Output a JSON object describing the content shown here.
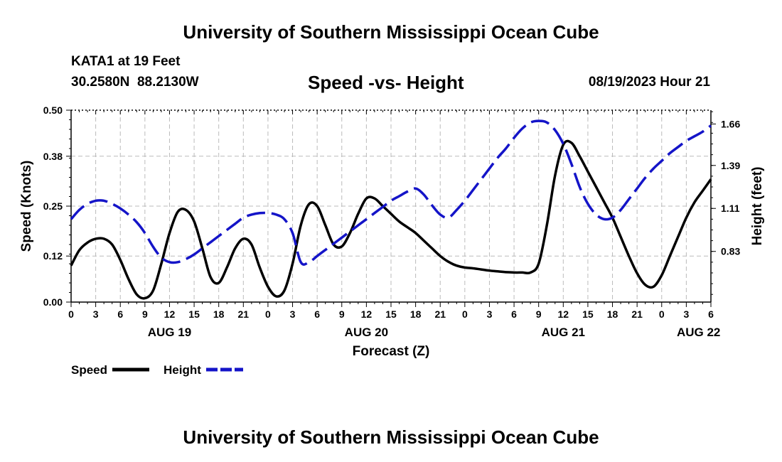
{
  "header": {
    "title": "University of Southern Mississippi Ocean Cube",
    "station": "KATA1 at 19 Feet",
    "coords": "30.2580N  88.2130W",
    "subtitle": "Speed -vs- Height",
    "timestamp": "08/19/2023 Hour 21"
  },
  "footer": {
    "title": "University of Southern Mississippi Ocean Cube"
  },
  "colors": {
    "speed": "#000000",
    "height": "#1414c8",
    "grid": "#bbbbbb"
  },
  "chart_data": {
    "type": "line",
    "title": "Speed -vs- Height",
    "xlabel": "Forecast (Z)",
    "ylabel": "Speed (Knots)",
    "y2label": "Height (feet)",
    "x_range_hours": [
      0,
      78
    ],
    "ylim": [
      0,
      0.5
    ],
    "y_ticks": [
      "0.00",
      "0.12",
      "0.25",
      "0.38",
      "0.50"
    ],
    "y2lim": [
      0.5,
      1.75
    ],
    "y2_ticks": [
      "0.83",
      "1.11",
      "1.39",
      "1.66"
    ],
    "x_tick_labels": [
      "0",
      "3",
      "6",
      "9",
      "12",
      "15",
      "18",
      "21",
      "0",
      "3",
      "6",
      "9",
      "12",
      "15",
      "18",
      "21",
      "0",
      "3",
      "6",
      "9",
      "12",
      "15",
      "18",
      "21",
      "0",
      "3",
      "6"
    ],
    "date_labels": [
      {
        "label": "AUG 19",
        "hour": 12
      },
      {
        "label": "AUG 20",
        "hour": 36
      },
      {
        "label": "AUG 21",
        "hour": 60
      },
      {
        "label": "AUG 22",
        "hour": 76.5
      }
    ],
    "grid": true,
    "legend": [
      {
        "name": "Speed",
        "style": "solid"
      },
      {
        "name": "Height",
        "style": "dashed"
      }
    ],
    "series": [
      {
        "name": "Speed",
        "axis": "left",
        "style": "solid",
        "x": [
          0,
          1,
          2,
          3,
          4,
          5,
          6,
          7,
          8,
          9,
          10,
          11,
          12,
          13,
          14,
          15,
          16,
          17,
          18,
          19,
          20,
          21,
          22,
          23,
          24,
          25,
          26,
          27,
          28,
          29,
          30,
          31,
          32,
          33,
          34,
          35,
          36,
          37,
          38,
          39,
          40,
          41,
          42,
          43,
          44,
          45,
          46,
          47,
          48,
          49,
          50,
          51,
          52,
          53,
          54,
          55,
          56,
          57,
          58,
          59,
          60,
          61,
          62,
          63,
          64,
          65,
          66,
          67,
          68,
          69,
          70,
          71,
          72,
          73,
          74,
          75,
          76,
          77,
          78
        ],
        "values": [
          0.095,
          0.135,
          0.155,
          0.165,
          0.165,
          0.15,
          0.11,
          0.06,
          0.02,
          0.01,
          0.03,
          0.1,
          0.18,
          0.235,
          0.24,
          0.21,
          0.14,
          0.065,
          0.05,
          0.09,
          0.14,
          0.165,
          0.15,
          0.09,
          0.04,
          0.015,
          0.03,
          0.1,
          0.2,
          0.255,
          0.25,
          0.2,
          0.15,
          0.145,
          0.18,
          0.23,
          0.27,
          0.27,
          0.25,
          0.23,
          0.21,
          0.195,
          0.18,
          0.16,
          0.14,
          0.12,
          0.105,
          0.095,
          0.09,
          0.088,
          0.085,
          0.082,
          0.08,
          0.078,
          0.077,
          0.077,
          0.077,
          0.1,
          0.2,
          0.33,
          0.41,
          0.415,
          0.38,
          0.34,
          0.3,
          0.26,
          0.22,
          0.17,
          0.12,
          0.075,
          0.045,
          0.04,
          0.07,
          0.12,
          0.17,
          0.22,
          0.26,
          0.29,
          0.32
        ]
      },
      {
        "name": "Height",
        "axis": "right",
        "style": "dashed",
        "x": [
          0,
          1,
          2,
          3,
          4,
          5,
          6,
          7,
          8,
          9,
          10,
          11,
          12,
          13,
          14,
          15,
          16,
          17,
          18,
          19,
          20,
          21,
          22,
          23,
          24,
          25,
          26,
          27,
          28,
          29,
          30,
          31,
          32,
          33,
          34,
          35,
          36,
          37,
          38,
          39,
          40,
          41,
          42,
          43,
          44,
          45,
          46,
          47,
          48,
          49,
          50,
          51,
          52,
          53,
          54,
          55,
          56,
          57,
          58,
          59,
          60,
          61,
          62,
          63,
          64,
          65,
          66,
          67,
          68,
          69,
          70,
          71,
          72,
          73,
          74,
          75,
          76,
          77,
          78
        ],
        "values": [
          1.04,
          1.1,
          1.14,
          1.16,
          1.16,
          1.14,
          1.11,
          1.07,
          1.02,
          0.95,
          0.86,
          0.79,
          0.76,
          0.76,
          0.78,
          0.81,
          0.85,
          0.89,
          0.93,
          0.97,
          1.01,
          1.05,
          1.07,
          1.08,
          1.08,
          1.07,
          1.04,
          0.95,
          0.76,
          0.76,
          0.8,
          0.84,
          0.88,
          0.92,
          0.96,
          1.0,
          1.04,
          1.08,
          1.12,
          1.16,
          1.19,
          1.22,
          1.24,
          1.2,
          1.13,
          1.07,
          1.05,
          1.1,
          1.16,
          1.23,
          1.3,
          1.37,
          1.44,
          1.5,
          1.57,
          1.63,
          1.67,
          1.68,
          1.67,
          1.62,
          1.53,
          1.4,
          1.25,
          1.14,
          1.07,
          1.04,
          1.05,
          1.1,
          1.17,
          1.24,
          1.31,
          1.37,
          1.42,
          1.47,
          1.51,
          1.55,
          1.58,
          1.61,
          1.65
        ]
      }
    ]
  }
}
